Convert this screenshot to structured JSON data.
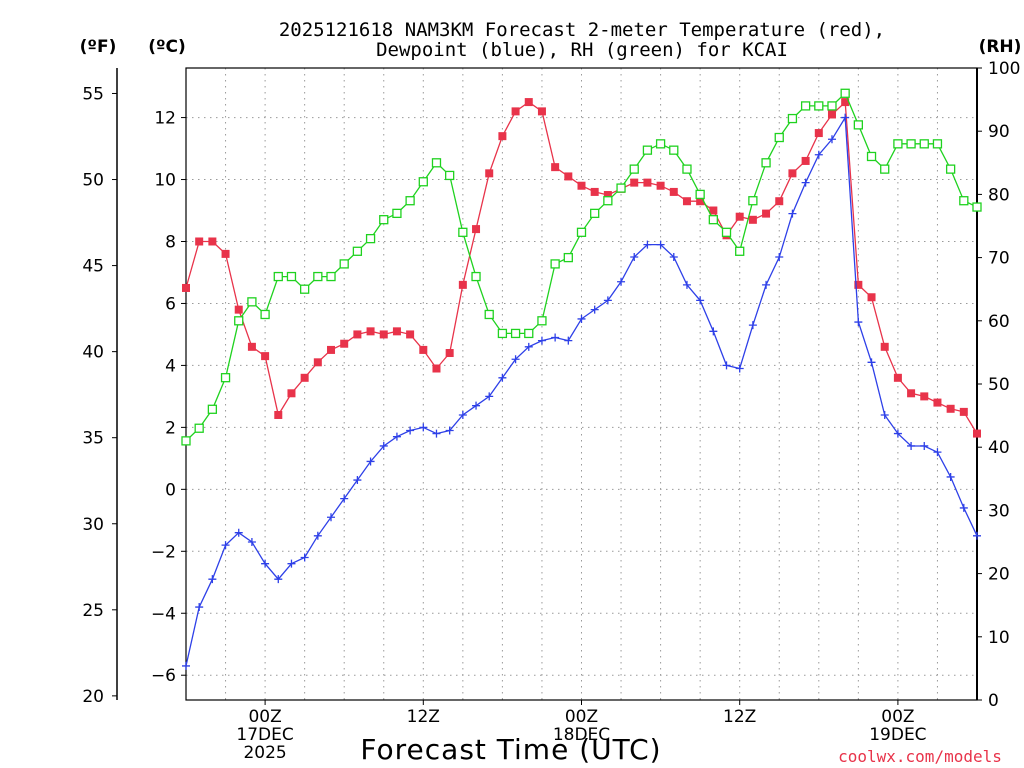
{
  "chart_data": {
    "type": "line",
    "title": "2025121618 NAM3KM Forecast 2-meter Temperature (red),",
    "title_line2": "Dewpoint (blue), RH (green) for KCAI",
    "xlabel": "Forecast Time (UTC)",
    "credit": "coolwx.com/models",
    "units": {
      "fahrenheit": "(ºF)",
      "celsius": "(ºC)",
      "rh": "(RH)"
    },
    "axes": {
      "celsius": {
        "ylim": [
          -6.8,
          13.6
        ],
        "ticks": [
          -6,
          -4,
          -2,
          0,
          2,
          4,
          6,
          8,
          10,
          12
        ]
      },
      "fahrenheit": {
        "ylim": [
          19.76,
          56.48
        ],
        "ticks": [
          20,
          25,
          30,
          35,
          40,
          45,
          50,
          55
        ]
      },
      "rh": {
        "ylim": [
          0,
          100
        ],
        "ticks": [
          0,
          10,
          20,
          30,
          40,
          50,
          60,
          70,
          80,
          90,
          100
        ]
      },
      "time": {
        "xlim": [
          18,
          78
        ],
        "ticks": [
          {
            "x": 24,
            "line1": "00Z",
            "line2": "17DEC",
            "line3": "2025"
          },
          {
            "x": 36,
            "line1": "12Z",
            "line2": "",
            "line3": ""
          },
          {
            "x": 48,
            "line1": "00Z",
            "line2": "18DEC",
            "line3": ""
          },
          {
            "x": 60,
            "line1": "12Z",
            "line2": "",
            "line3": ""
          },
          {
            "x": 72,
            "line1": "00Z",
            "line2": "19DEC",
            "line3": ""
          }
        ],
        "minor_grid": [
          21,
          27,
          30,
          33,
          39,
          42,
          45,
          51,
          54,
          57,
          63,
          66,
          69,
          75
        ]
      }
    },
    "x": [
      18,
      19,
      20,
      21,
      22,
      23,
      24,
      25,
      26,
      27,
      28,
      29,
      30,
      31,
      32,
      33,
      34,
      35,
      36,
      37,
      38,
      39,
      40,
      41,
      42,
      43,
      44,
      45,
      46,
      47,
      48,
      49,
      50,
      51,
      52,
      53,
      54,
      55,
      56,
      57,
      58,
      59,
      60,
      61,
      62,
      63,
      64,
      65,
      66,
      67,
      68,
      69,
      70,
      71,
      72,
      73,
      74,
      75,
      76,
      77,
      78
    ],
    "series": [
      {
        "name": "2-meter Temperature",
        "unit": "C",
        "color": "#e8334a",
        "marker": "filled-square",
        "values": [
          6.5,
          8.0,
          8.0,
          7.6,
          5.8,
          4.6,
          4.3,
          2.4,
          3.1,
          3.6,
          4.1,
          4.5,
          4.7,
          5.0,
          5.1,
          5.0,
          5.1,
          5.0,
          4.5,
          3.9,
          4.4,
          6.6,
          8.4,
          10.2,
          11.4,
          12.2,
          12.5,
          12.2,
          10.4,
          10.1,
          9.8,
          9.6,
          9.5,
          9.7,
          9.9,
          9.9,
          9.8,
          9.6,
          9.3,
          9.3,
          9.0,
          8.2,
          8.8,
          8.7,
          8.9,
          9.3,
          10.2,
          10.6,
          11.5,
          12.1,
          12.5,
          6.6,
          6.2,
          4.6,
          3.6,
          3.1,
          3.0,
          2.8,
          2.6,
          2.5,
          1.8
        ]
      },
      {
        "name": "Dewpoint",
        "unit": "C",
        "color": "#2e40e8",
        "marker": "plus",
        "values": [
          -5.7,
          -3.8,
          -2.9,
          -1.8,
          -1.4,
          -1.7,
          -2.4,
          -2.9,
          -2.4,
          -2.2,
          -1.5,
          -0.9,
          -0.3,
          0.3,
          0.9,
          1.4,
          1.7,
          1.9,
          2.0,
          1.8,
          1.9,
          2.4,
          2.7,
          3.0,
          3.6,
          4.2,
          4.6,
          4.8,
          4.9,
          4.8,
          5.5,
          5.8,
          6.1,
          6.7,
          7.5,
          7.9,
          7.9,
          7.5,
          6.6,
          6.1,
          5.1,
          4.0,
          3.9,
          5.3,
          6.6,
          7.5,
          8.9,
          9.9,
          10.8,
          11.3,
          12.0,
          5.4,
          4.1,
          2.4,
          1.8,
          1.4,
          1.4,
          1.2,
          0.4,
          -0.6,
          -1.5
        ]
      },
      {
        "name": "RH",
        "unit": "%",
        "color": "#1fd21f",
        "marker": "open-square",
        "values": [
          41,
          43,
          46,
          51,
          60,
          63,
          61,
          67,
          67,
          65,
          67,
          67,
          69,
          71,
          73,
          76,
          77,
          79,
          82,
          85,
          83,
          74,
          67,
          61,
          58,
          58,
          58,
          60,
          69,
          70,
          74,
          77,
          79,
          81,
          84,
          87,
          88,
          87,
          84,
          80,
          76,
          74,
          71,
          79,
          85,
          89,
          92,
          94,
          94,
          94,
          96,
          91,
          86,
          84,
          88,
          88,
          88,
          88,
          84,
          79,
          78
        ]
      }
    ]
  }
}
